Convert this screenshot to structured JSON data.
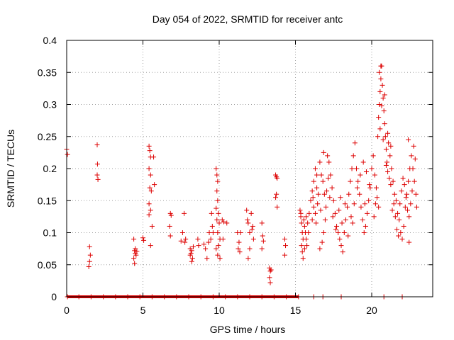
{
  "chart_data": {
    "type": "scatter",
    "title": "Day 054 of 2022, SRMTID for receiver antc",
    "xlabel": "GPS time / hours",
    "ylabel": "SRMTID / TECUs",
    "xlim": [
      0,
      24
    ],
    "ylim": [
      0,
      0.4
    ],
    "x_ticks": [
      0,
      5,
      10,
      15,
      20
    ],
    "y_ticks": [
      0,
      0.05,
      0.1,
      0.15,
      0.2,
      0.25,
      0.3,
      0.35,
      0.4
    ],
    "x_tick_labels": [
      "0",
      "5",
      "10",
      "15",
      "20"
    ],
    "y_tick_labels": [
      "0",
      "0.05",
      "0.1",
      "0.15",
      "0.2",
      "0.25",
      "0.3",
      "0.35",
      "0.4"
    ],
    "grid": true,
    "marker": "+",
    "colors": {
      "points": "#dd0000",
      "grid": "#a0a0a0",
      "axis": "#000000"
    },
    "series": [
      {
        "name": "SRMTID",
        "points": [
          [
            0.0,
            0.23
          ],
          [
            0.05,
            0.222
          ],
          [
            1.5,
            0.078
          ],
          [
            1.55,
            0.065
          ],
          [
            1.5,
            0.055
          ],
          [
            1.45,
            0.047
          ],
          [
            2.0,
            0.237
          ],
          [
            2.02,
            0.207
          ],
          [
            2.0,
            0.19
          ],
          [
            2.05,
            0.183
          ],
          [
            4.4,
            0.09
          ],
          [
            4.45,
            0.072
          ],
          [
            4.5,
            0.068
          ],
          [
            4.4,
            0.06
          ],
          [
            4.45,
            0.052
          ],
          [
            4.5,
            0.075
          ],
          [
            4.55,
            0.065
          ],
          [
            4.6,
            0.071
          ],
          [
            5.0,
            0.092
          ],
          [
            5.05,
            0.088
          ],
          [
            5.4,
            0.235
          ],
          [
            5.45,
            0.228
          ],
          [
            5.5,
            0.218
          ],
          [
            5.4,
            0.2
          ],
          [
            5.5,
            0.19
          ],
          [
            5.45,
            0.17
          ],
          [
            5.55,
            0.165
          ],
          [
            5.4,
            0.145
          ],
          [
            5.5,
            0.135
          ],
          [
            5.4,
            0.128
          ],
          [
            5.6,
            0.11
          ],
          [
            5.7,
            0.218
          ],
          [
            5.75,
            0.175
          ],
          [
            5.5,
            0.08
          ],
          [
            6.8,
            0.13
          ],
          [
            6.85,
            0.127
          ],
          [
            6.75,
            0.11
          ],
          [
            6.8,
            0.095
          ],
          [
            7.5,
            0.087
          ],
          [
            7.6,
            0.1
          ],
          [
            7.7,
            0.13
          ],
          [
            7.8,
            0.09
          ],
          [
            7.75,
            0.085
          ],
          [
            8.1,
            0.075
          ],
          [
            8.15,
            0.068
          ],
          [
            8.2,
            0.072
          ],
          [
            8.25,
            0.06
          ],
          [
            8.2,
            0.055
          ],
          [
            8.1,
            0.065
          ],
          [
            8.3,
            0.078
          ],
          [
            8.6,
            0.09
          ],
          [
            8.65,
            0.08
          ],
          [
            9.0,
            0.082
          ],
          [
            9.1,
            0.075
          ],
          [
            9.2,
            0.06
          ],
          [
            9.3,
            0.085
          ],
          [
            9.35,
            0.1
          ],
          [
            9.5,
            0.13
          ],
          [
            9.55,
            0.11
          ],
          [
            9.6,
            0.1
          ],
          [
            9.45,
            0.09
          ],
          [
            9.8,
            0.2
          ],
          [
            9.85,
            0.19
          ],
          [
            9.9,
            0.18
          ],
          [
            9.85,
            0.165
          ],
          [
            9.9,
            0.15
          ],
          [
            9.8,
            0.138
          ],
          [
            9.95,
            0.13
          ],
          [
            9.85,
            0.12
          ],
          [
            10.0,
            0.115
          ],
          [
            9.9,
            0.1
          ],
          [
            10.05,
            0.09
          ],
          [
            9.95,
            0.08
          ],
          [
            9.9,
            0.065
          ],
          [
            10.05,
            0.06
          ],
          [
            9.8,
            0.075
          ],
          [
            10.2,
            0.12
          ],
          [
            10.3,
            0.117
          ],
          [
            10.25,
            0.09
          ],
          [
            10.5,
            0.115
          ],
          [
            11.2,
            0.1
          ],
          [
            11.3,
            0.085
          ],
          [
            11.35,
            0.07
          ],
          [
            11.25,
            0.075
          ],
          [
            11.4,
            0.1
          ],
          [
            11.8,
            0.135
          ],
          [
            11.85,
            0.12
          ],
          [
            11.9,
            0.115
          ],
          [
            12.0,
            0.1
          ],
          [
            12.1,
            0.13
          ],
          [
            12.2,
            0.11
          ],
          [
            12.25,
            0.09
          ],
          [
            12.0,
            0.075
          ],
          [
            11.9,
            0.06
          ],
          [
            12.15,
            0.105
          ],
          [
            12.8,
            0.115
          ],
          [
            12.85,
            0.095
          ],
          [
            12.9,
            0.087
          ],
          [
            12.8,
            0.075
          ],
          [
            13.3,
            0.045
          ],
          [
            13.35,
            0.04
          ],
          [
            13.3,
            0.03
          ],
          [
            13.35,
            0.022
          ],
          [
            13.4,
            0.042
          ],
          [
            13.7,
            0.19
          ],
          [
            13.75,
            0.187
          ],
          [
            13.8,
            0.185
          ],
          [
            13.75,
            0.16
          ],
          [
            13.8,
            0.14
          ],
          [
            13.7,
            0.155
          ],
          [
            14.3,
            0.09
          ],
          [
            14.35,
            0.08
          ],
          [
            14.3,
            0.065
          ],
          [
            15.3,
            0.135
          ],
          [
            15.35,
            0.125
          ],
          [
            15.4,
            0.115
          ],
          [
            15.45,
            0.1
          ],
          [
            15.5,
            0.09
          ],
          [
            15.4,
            0.08
          ],
          [
            15.45,
            0.07
          ],
          [
            15.5,
            0.06
          ],
          [
            15.55,
            0.12
          ],
          [
            15.6,
            0.11
          ],
          [
            15.65,
            0.1
          ],
          [
            15.7,
            0.09
          ],
          [
            15.75,
            0.08
          ],
          [
            15.8,
            0.115
          ],
          [
            15.85,
            0.1
          ],
          [
            15.9,
            0.13
          ],
          [
            15.35,
            0.13
          ],
          [
            15.6,
            0.075
          ],
          [
            15.7,
            0.125
          ],
          [
            16.0,
            0.15
          ],
          [
            16.1,
            0.165
          ],
          [
            16.2,
            0.18
          ],
          [
            16.3,
            0.2
          ],
          [
            16.4,
            0.17
          ],
          [
            16.5,
            0.16
          ],
          [
            16.2,
            0.14
          ],
          [
            16.3,
            0.13
          ],
          [
            16.1,
            0.12
          ],
          [
            16.4,
            0.19
          ],
          [
            16.6,
            0.21
          ],
          [
            16.7,
            0.19
          ],
          [
            16.8,
            0.18
          ],
          [
            16.9,
            0.16
          ],
          [
            17.0,
            0.14
          ],
          [
            16.95,
            0.12
          ],
          [
            16.85,
            0.1
          ],
          [
            16.75,
            0.085
          ],
          [
            16.6,
            0.075
          ],
          [
            17.1,
            0.22
          ],
          [
            17.2,
            0.21
          ],
          [
            17.3,
            0.19
          ],
          [
            17.4,
            0.17
          ],
          [
            17.5,
            0.15
          ],
          [
            17.6,
            0.13
          ],
          [
            17.7,
            0.11
          ],
          [
            17.8,
            0.1
          ],
          [
            17.9,
            0.09
          ],
          [
            18.0,
            0.08
          ],
          [
            18.1,
            0.07
          ],
          [
            18.2,
            0.1
          ],
          [
            18.3,
            0.12
          ],
          [
            18.4,
            0.14
          ],
          [
            18.5,
            0.16
          ],
          [
            18.6,
            0.18
          ],
          [
            18.7,
            0.2
          ],
          [
            18.8,
            0.22
          ],
          [
            18.9,
            0.24
          ],
          [
            19.0,
            0.2
          ],
          [
            19.1,
            0.18
          ],
          [
            19.2,
            0.16
          ],
          [
            19.3,
            0.14
          ],
          [
            19.4,
            0.12
          ],
          [
            19.5,
            0.1
          ],
          [
            19.6,
            0.11
          ],
          [
            19.7,
            0.13
          ],
          [
            19.8,
            0.15
          ],
          [
            19.9,
            0.17
          ],
          [
            16.15,
            0.155
          ],
          [
            16.45,
            0.145
          ],
          [
            16.65,
            0.135
          ],
          [
            16.85,
            0.225
          ],
          [
            17.05,
            0.165
          ],
          [
            17.25,
            0.155
          ],
          [
            17.45,
            0.125
          ],
          [
            17.65,
            0.105
          ],
          [
            17.85,
            0.135
          ],
          [
            18.05,
            0.115
          ],
          [
            18.25,
            0.145
          ],
          [
            18.45,
            0.095
          ],
          [
            18.65,
            0.125
          ],
          [
            18.85,
            0.145
          ],
          [
            19.05,
            0.17
          ],
          [
            19.25,
            0.19
          ],
          [
            19.45,
            0.21
          ],
          [
            19.65,
            0.195
          ],
          [
            19.85,
            0.175
          ],
          [
            16.35,
            0.115
          ],
          [
            17.15,
            0.185
          ],
          [
            17.95,
            0.155
          ],
          [
            18.75,
            0.115
          ],
          [
            19.55,
            0.145
          ],
          [
            20.0,
            0.2
          ],
          [
            20.1,
            0.22
          ],
          [
            20.2,
            0.19
          ],
          [
            20.3,
            0.17
          ],
          [
            20.4,
            0.25
          ],
          [
            20.45,
            0.28
          ],
          [
            20.5,
            0.3
          ],
          [
            20.55,
            0.32
          ],
          [
            20.6,
            0.34
          ],
          [
            20.65,
            0.36
          ],
          [
            20.7,
            0.33
          ],
          [
            20.75,
            0.31
          ],
          [
            20.8,
            0.29
          ],
          [
            20.85,
            0.27
          ],
          [
            20.9,
            0.25
          ],
          [
            20.95,
            0.23
          ],
          [
            21.0,
            0.21
          ],
          [
            21.1,
            0.24
          ],
          [
            21.2,
            0.22
          ],
          [
            21.3,
            0.2
          ],
          [
            21.4,
            0.18
          ],
          [
            21.5,
            0.16
          ],
          [
            21.6,
            0.15
          ],
          [
            21.7,
            0.13
          ],
          [
            21.8,
            0.12
          ],
          [
            21.9,
            0.1
          ],
          [
            22.0,
            0.09
          ],
          [
            22.1,
            0.11
          ],
          [
            22.2,
            0.14
          ],
          [
            22.3,
            0.16
          ],
          [
            22.4,
            0.18
          ],
          [
            22.5,
            0.2
          ],
          [
            22.6,
            0.22
          ],
          [
            22.7,
            0.2
          ],
          [
            22.8,
            0.18
          ],
          [
            22.9,
            0.16
          ],
          [
            22.95,
            0.14
          ],
          [
            20.5,
            0.35
          ],
          [
            20.55,
            0.262
          ],
          [
            20.65,
            0.298
          ],
          [
            20.75,
            0.245
          ],
          [
            20.85,
            0.315
          ],
          [
            20.95,
            0.205
          ],
          [
            21.05,
            0.195
          ],
          [
            21.15,
            0.185
          ],
          [
            21.25,
            0.175
          ],
          [
            21.35,
            0.135
          ],
          [
            21.45,
            0.145
          ],
          [
            21.55,
            0.125
          ],
          [
            21.65,
            0.105
          ],
          [
            21.75,
            0.095
          ],
          [
            21.85,
            0.145
          ],
          [
            21.95,
            0.165
          ],
          [
            22.05,
            0.185
          ],
          [
            22.15,
            0.175
          ],
          [
            22.25,
            0.155
          ],
          [
            22.35,
            0.135
          ],
          [
            22.45,
            0.125
          ],
          [
            22.55,
            0.145
          ],
          [
            22.65,
            0.165
          ],
          [
            22.75,
            0.235
          ],
          [
            22.85,
            0.215
          ],
          [
            20.35,
            0.155
          ],
          [
            20.25,
            0.145
          ],
          [
            20.15,
            0.125
          ],
          [
            21.05,
            0.255
          ],
          [
            21.25,
            0.235
          ],
          [
            22.4,
            0.245
          ],
          [
            22.45,
            0.085
          ],
          [
            20.45,
            0.14
          ],
          [
            20.6,
            0.36
          ],
          [
            0.05,
            0.0
          ],
          [
            0.8,
            0.0
          ],
          [
            1.6,
            0.0
          ],
          [
            2.4,
            0.0
          ],
          [
            3.2,
            0.0
          ],
          [
            4.0,
            0.0
          ],
          [
            4.8,
            0.0
          ],
          [
            5.6,
            0.0
          ],
          [
            6.4,
            0.0
          ],
          [
            7.2,
            0.0
          ],
          [
            8.0,
            0.0
          ],
          [
            8.8,
            0.0
          ],
          [
            9.6,
            0.0
          ],
          [
            10.4,
            0.0
          ],
          [
            11.2,
            0.0
          ],
          [
            12.0,
            0.0
          ],
          [
            12.8,
            0.0
          ],
          [
            13.6,
            0.0
          ],
          [
            14.4,
            0.0
          ],
          [
            15.2,
            0.0
          ],
          [
            16.2,
            0.0
          ],
          [
            16.8,
            0.0
          ],
          [
            18.0,
            0.0
          ],
          [
            20.8,
            0.0
          ],
          [
            22.0,
            0.0
          ]
        ]
      }
    ]
  }
}
